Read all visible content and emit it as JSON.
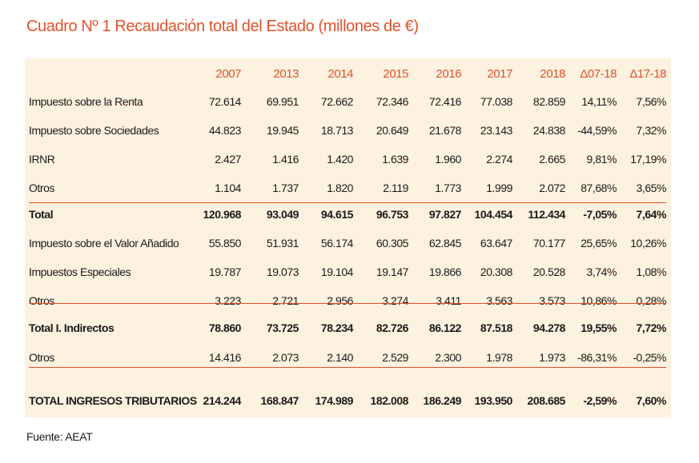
{
  "title": "Cuadro Nº 1 Recaudación total del Estado (millones de €)",
  "columns": [
    "2007",
    "2013",
    "2014",
    "2015",
    "2016",
    "2017",
    "2018",
    "Δ07-18",
    "Δ17-18"
  ],
  "rows": [
    {
      "label": "Impuesto sobre la Renta",
      "values": [
        "72.614",
        "69.951",
        "72.662",
        "72.346",
        "72.416",
        "77.038",
        "82.859",
        "14,11%",
        "7,56%"
      ],
      "bold": false
    },
    {
      "label": "Impuesto sobre Sociedades",
      "values": [
        "44.823",
        "19.945",
        "18.713",
        "20.649",
        "21.678",
        "23.143",
        "24.838",
        "-44,59%",
        "7,32%"
      ],
      "bold": false
    },
    {
      "label": "IRNR",
      "values": [
        "2.427",
        "1.416",
        "1.420",
        "1.639",
        "1.960",
        "2.274",
        "2.665",
        "9,81%",
        "17,19%"
      ],
      "bold": false
    },
    {
      "label": "Otros",
      "values": [
        "1.104",
        "1.737",
        "1.820",
        "2.119",
        "1.773",
        "1.999",
        "2.072",
        "87,68%",
        "3,65%"
      ],
      "bold": false
    },
    {
      "label": "Total",
      "values": [
        "120.968",
        "93.049",
        "94.615",
        "96.753",
        "97.827",
        "104.454",
        "112.434",
        "-7,05%",
        "7,64%"
      ],
      "bold": true
    },
    {
      "label": "Impuesto sobre el Valor Añadido",
      "values": [
        "55.850",
        "51.931",
        "56.174",
        "60.305",
        "62.845",
        "63.647",
        "70.177",
        "25,65%",
        "10,26%"
      ],
      "bold": false
    },
    {
      "label": "Impuestos Especiales",
      "values": [
        "19.787",
        "19.073",
        "19.104",
        "19.147",
        "19.866",
        "20.308",
        "20.528",
        "3,74%",
        "1,08%"
      ],
      "bold": false
    },
    {
      "label": "Otros",
      "values": [
        "3.223",
        "2.721",
        "2.956",
        "3.274",
        "3.411",
        "3.563",
        "3.573",
        "10,86%",
        "0,28%"
      ],
      "bold": false
    },
    {
      "label": "Total I. Indirectos",
      "values": [
        "78.860",
        "73.725",
        "78.234",
        "82.726",
        "86.122",
        "87.518",
        "94.278",
        "19,55%",
        "7,72%"
      ],
      "bold": true
    },
    {
      "label": "Otros",
      "values": [
        "14.416",
        "2.073",
        "2.140",
        "2.529",
        "2.300",
        "1.978",
        "1.973",
        "-86,31%",
        "-0,25%"
      ],
      "bold": false
    },
    {
      "label": "TOTAL INGRESOS TRIBUTARIOS",
      "values": [
        "214.244",
        "168.847",
        "174.989",
        "182.008",
        "186.249",
        "193.950",
        "208.685",
        "-2,59%",
        "7,60%"
      ],
      "bold": true
    }
  ],
  "source": "Fuente: AEAT",
  "colors": {
    "accent": "#e0522b",
    "background": "#fdf1df"
  }
}
